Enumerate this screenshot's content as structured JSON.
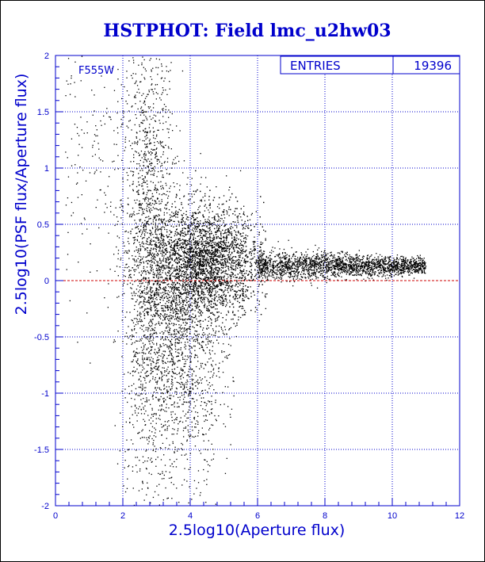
{
  "chart_data": {
    "type": "scatter",
    "title": "HSTPHOT: Field lmc_u2hw03",
    "xlabel": "2.5log10(Aperture flux)",
    "ylabel": "2.5log10(PSF flux/Aperture flux)",
    "xlim": [
      0,
      12
    ],
    "ylim": [
      -2,
      2
    ],
    "x_ticks": [
      "0",
      "2",
      "4",
      "6",
      "8",
      "10",
      "12"
    ],
    "y_ticks": [
      "-2",
      "-1.5",
      "-1",
      "-0.5",
      "0",
      "0.5",
      "1",
      "1.5",
      "2"
    ],
    "grid": true,
    "reference_line_y": 0,
    "annotation": "F555W",
    "stats": {
      "label": "ENTRIES",
      "value": "19396"
    },
    "colors": {
      "text": "#0000cc",
      "grid": "#0000cc",
      "points": "#000000",
      "reference_line": "#cc0000"
    },
    "point_density_regions": [
      {
        "x_range": [
          0.3,
          2.0
        ],
        "y_center": 1.2,
        "y_spread": 0.7,
        "density": "sparse"
      },
      {
        "x_range": [
          2.0,
          3.5
        ],
        "y_center": 0.3,
        "y_spread": 0.9,
        "density": "medium"
      },
      {
        "x_range": [
          3.0,
          6.0
        ],
        "y_center": 0.15,
        "y_spread": 0.25,
        "density": "dense"
      },
      {
        "x_range": [
          6.0,
          11.0
        ],
        "y_center": 0.13,
        "y_spread": 0.05,
        "density": "dense-narrow"
      },
      {
        "x_range": [
          2.5,
          5.0
        ],
        "y_center": -0.5,
        "y_spread": 0.6,
        "density": "medium"
      },
      {
        "x_range": [
          2.0,
          4.5
        ],
        "y_center": -1.4,
        "y_spread": 0.5,
        "density": "sparse"
      }
    ]
  }
}
